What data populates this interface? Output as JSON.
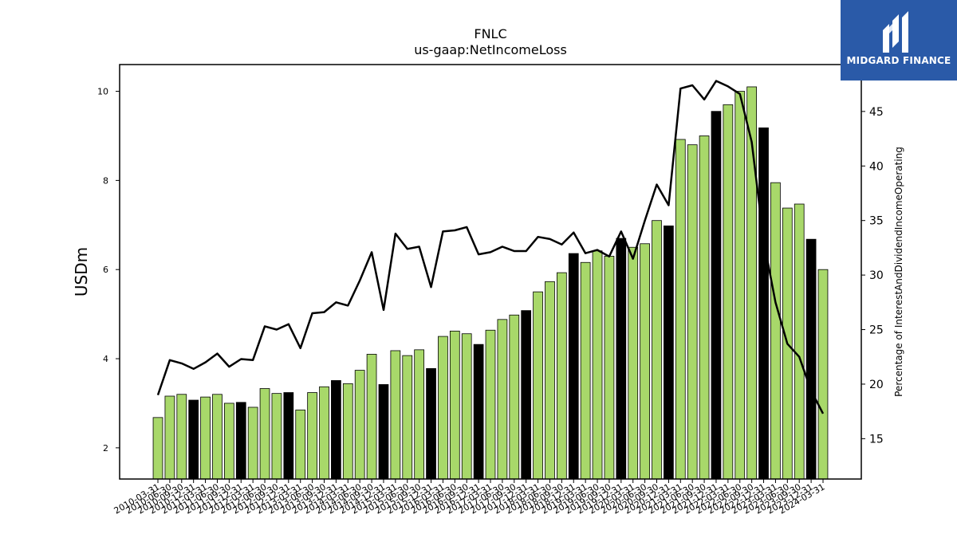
{
  "brand": {
    "name": "MIDGARD FINANCE",
    "bg_color": "#2a5aa8",
    "icon": "midgard-logo-icon"
  },
  "chart_data": {
    "type": "bar+line",
    "title": "FNLC",
    "subtitle": "us-gaap:NetIncomeLoss",
    "ylabel_left": "USDm",
    "ylabel_right": "Percentage of InterestAndDividendIncomeOperating",
    "ylim_left": [
      1.3,
      10.6
    ],
    "ylim_right": [
      11.3,
      49.3
    ],
    "yticks_left": [
      2,
      4,
      6,
      8,
      10
    ],
    "yticks_right": [
      15,
      20,
      25,
      30,
      35,
      40,
      45
    ],
    "grid": false,
    "bar_colors": {
      "quarter": "#a8d86a",
      "year_end": "#000000"
    },
    "line_color": "#000000",
    "categories": [
      "2010-03-31",
      "2010-06-30",
      "2010-09-30",
      "2010-12-31",
      "2011-03-31",
      "2011-06-30",
      "2011-09-30",
      "2011-12-31",
      "2012-03-31",
      "2012-06-30",
      "2012-09-30",
      "2012-12-31",
      "2013-03-31",
      "2013-06-30",
      "2013-09-30",
      "2013-12-31",
      "2014-03-31",
      "2014-06-30",
      "2014-09-30",
      "2014-12-31",
      "2015-03-31",
      "2015-06-30",
      "2015-09-30",
      "2015-12-31",
      "2016-03-31",
      "2016-06-30",
      "2016-09-30",
      "2016-12-31",
      "2017-03-31",
      "2017-06-30",
      "2017-09-30",
      "2017-12-31",
      "2018-03-31",
      "2018-06-30",
      "2018-09-30",
      "2018-12-31",
      "2019-03-31",
      "2019-06-30",
      "2019-09-30",
      "2019-12-31",
      "2020-03-31",
      "2020-06-30",
      "2020-09-30",
      "2020-12-31",
      "2021-03-31",
      "2021-06-30",
      "2021-09-30",
      "2021-12-31",
      "2022-03-31",
      "2022-06-30",
      "2022-09-30",
      "2022-12-31",
      "2023-03-31",
      "2023-06-30",
      "2023-09-30",
      "2023-12-31",
      "2024-03-31"
    ],
    "series": [
      {
        "type": "bar",
        "axis": "left",
        "values": [
          2.68,
          3.16,
          3.2,
          3.07,
          3.14,
          3.2,
          3.0,
          3.02,
          2.91,
          3.33,
          3.22,
          3.24,
          2.85,
          3.24,
          3.37,
          3.51,
          3.44,
          3.74,
          4.1,
          3.42,
          4.18,
          4.07,
          4.2,
          3.78,
          4.5,
          4.62,
          4.56,
          4.32,
          4.64,
          4.88,
          4.98,
          5.08,
          5.5,
          5.73,
          5.93,
          6.36,
          6.16,
          6.42,
          6.3,
          6.7,
          6.5,
          6.58,
          7.1,
          6.98,
          8.92,
          8.8,
          9.0,
          9.55,
          9.7,
          10.0,
          10.1,
          9.18,
          7.95,
          7.38,
          7.47,
          6.68,
          6.0
        ]
      },
      {
        "type": "line",
        "axis": "right",
        "values": [
          19.0,
          22.2,
          21.9,
          21.4,
          22.0,
          22.8,
          21.6,
          22.3,
          22.2,
          25.3,
          25.0,
          25.5,
          23.3,
          26.5,
          26.6,
          27.5,
          27.2,
          29.5,
          32.1,
          26.8,
          33.8,
          32.4,
          32.6,
          28.9,
          34.0,
          34.1,
          34.4,
          31.9,
          32.1,
          32.6,
          32.2,
          32.2,
          33.5,
          33.3,
          32.8,
          33.9,
          32.0,
          32.3,
          31.7,
          34.0,
          31.5,
          35.0,
          38.3,
          36.4,
          47.1,
          47.4,
          46.1,
          47.8,
          47.3,
          46.6,
          42.2,
          33.2,
          27.5,
          23.7,
          22.5,
          19.4,
          17.3
        ]
      }
    ]
  }
}
